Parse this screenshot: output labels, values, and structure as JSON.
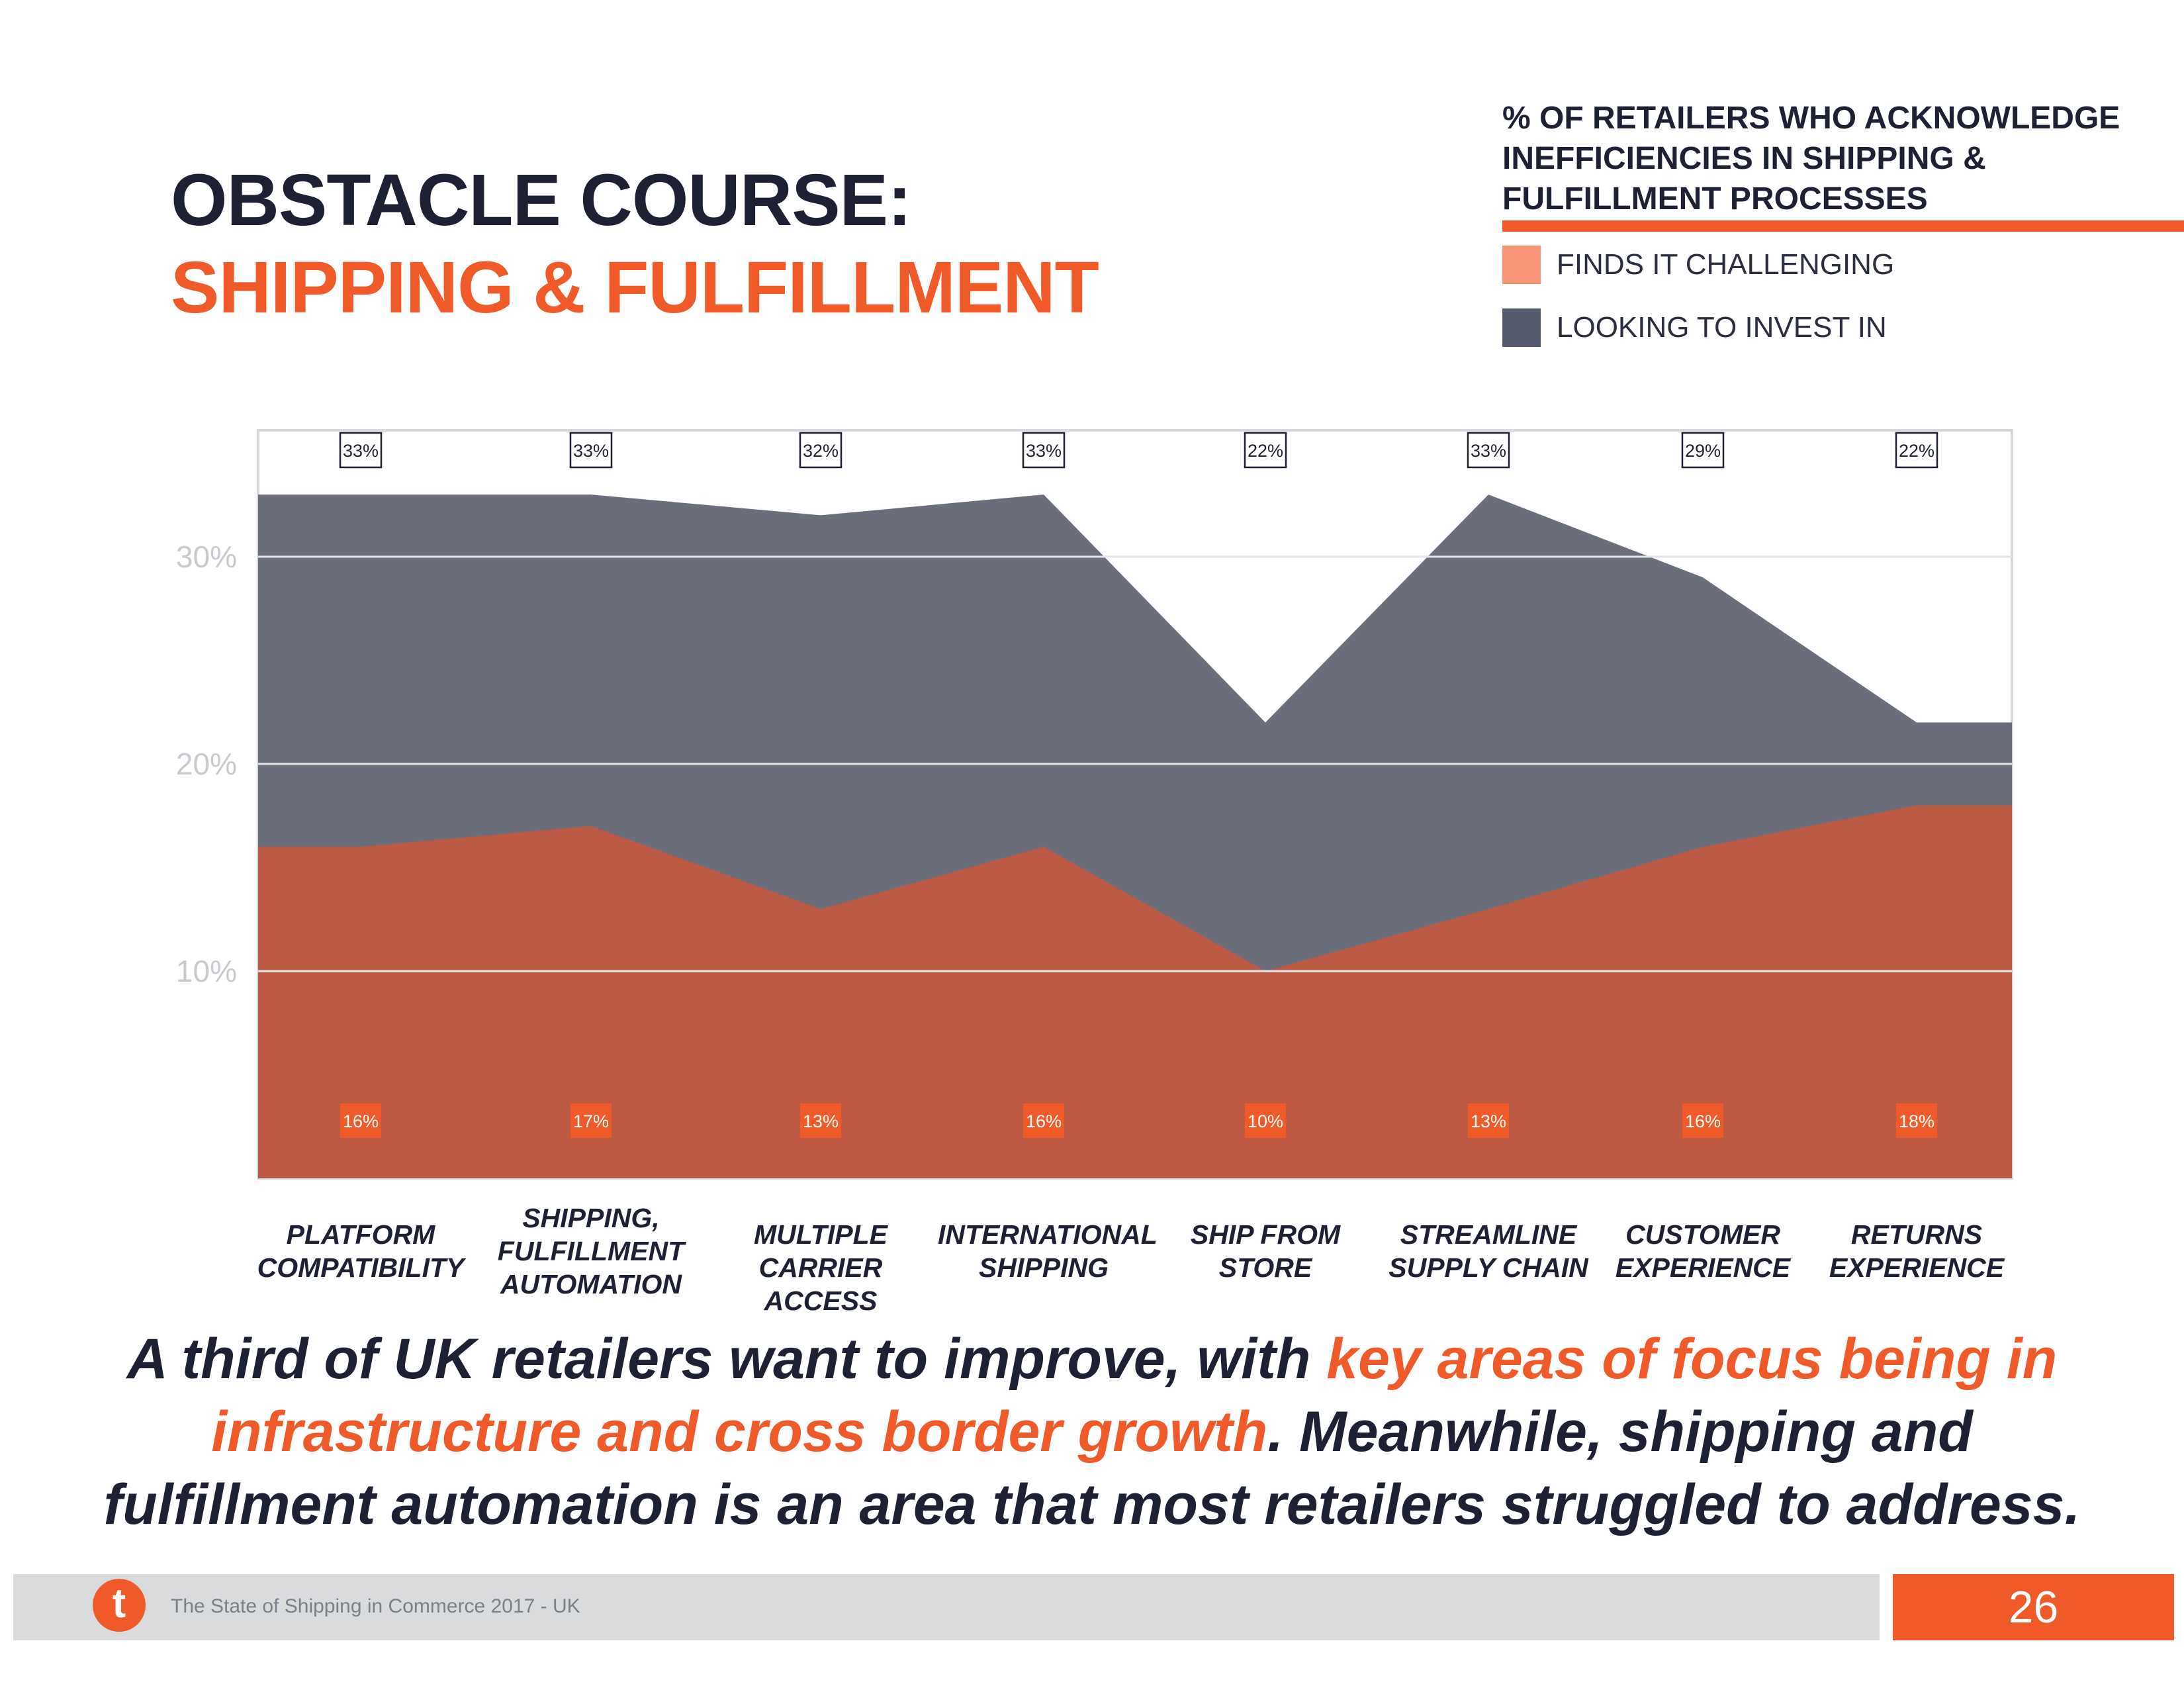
{
  "title": {
    "line1": "OBSTACLE COURSE:",
    "line2": "SHIPPING & FULFILLMENT"
  },
  "legend": {
    "title": "% OF RETAILERS WHO ACKNOWLEDGE INEFFICIENCIES IN SHIPPING & FULFILLMENT PROCESSES",
    "items": [
      {
        "label": "FINDS IT CHALLENGING",
        "color": "#f69478"
      },
      {
        "label": "LOOKING TO INVEST IN",
        "color": "#555a6c"
      }
    ]
  },
  "chart_data": {
    "type": "area",
    "categories": [
      "PLATFORM COMPATIBILITY",
      "SHIPPING, FULFILLMENT AUTOMATION",
      "MULTIPLE CARRIER ACCESS",
      "INTERNATIONAL SHIPPING",
      "SHIP FROM STORE",
      "STREAMLINE SUPPLY CHAIN",
      "CUSTOMER EXPERIENCE",
      "RETURNS EXPERIENCE"
    ],
    "series": [
      {
        "name": "LOOKING TO INVEST IN",
        "values": [
          33,
          33,
          32,
          33,
          22,
          33,
          29,
          22
        ],
        "color": "#6b6f7c",
        "labels": [
          "33%",
          "33%",
          "32%",
          "33%",
          "22%",
          "33%",
          "29%",
          "22%"
        ]
      },
      {
        "name": "FINDS IT CHALLENGING",
        "values": [
          16,
          17,
          13,
          16,
          10,
          13,
          16,
          18
        ],
        "color": "#bc5a44",
        "labels": [
          "16%",
          "17%",
          "13%",
          "16%",
          "10%",
          "13%",
          "16%",
          "18%"
        ]
      }
    ],
    "y_ticks": [
      "10%",
      "20%",
      "30%"
    ],
    "ylim": [
      0,
      36
    ],
    "grid": true,
    "label_box_color": "#f05a28"
  },
  "tagline": {
    "part1": "A third of UK retailers want to improve, with ",
    "highlight": "key areas of focus being in infrastructure and cross border growth",
    "part2": ". Meanwhile, shipping and fulfillment automation is an area that most retailers struggled to address."
  },
  "footer": {
    "logo": "t",
    "text": "The State of Shipping in Commerce 2017 - UK",
    "page": "26"
  }
}
